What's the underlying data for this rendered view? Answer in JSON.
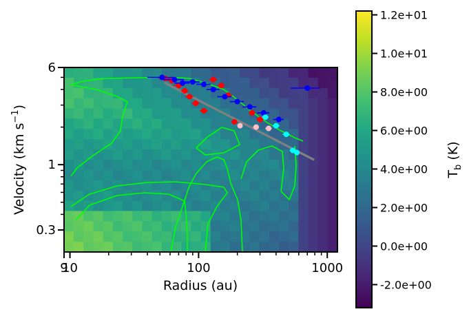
{
  "chart_data": {
    "type": "heatmap",
    "xlabel": "Radius (au)",
    "ylabel_main": "Velocity (km s",
    "ylabel_sup": "−1",
    "ylabel_close": ")",
    "x_scale": "log",
    "y_scale": "log",
    "xlim": [
      9,
      1200
    ],
    "ylim": [
      0.2,
      6.0
    ],
    "x_ticks": [
      {
        "value": 9,
        "label": "9"
      },
      {
        "value": 10,
        "label": "10"
      },
      {
        "value": 100,
        "label": "100"
      },
      {
        "value": 1000,
        "label": "1000"
      }
    ],
    "y_ticks": [
      {
        "value": 0.3,
        "label": "0.3"
      },
      {
        "value": 1,
        "label": "1"
      },
      {
        "value": 6,
        "label": "6"
      }
    ],
    "colorbar": {
      "label_main": "T",
      "label_sub": "b",
      "label_unit": " (K)",
      "range": [
        -3.2,
        12.2
      ],
      "ticks": [
        {
          "value": 12,
          "label": "1.2e+01"
        },
        {
          "value": 10,
          "label": "1.0e+01"
        },
        {
          "value": 8,
          "label": "8.0e+00"
        },
        {
          "value": 6,
          "label": "6.0e+00"
        },
        {
          "value": 4,
          "label": "4.0e+00"
        },
        {
          "value": 2,
          "label": "2.0e+00"
        },
        {
          "value": 0,
          "label": "0.0e+00"
        },
        {
          "value": -2,
          "label": "-2.0e+00"
        }
      ],
      "colormap": "viridis"
    },
    "contour_color": "#00ff00",
    "fit_line": {
      "color": "#808080",
      "points": [
        [
          55,
          4.5
        ],
        [
          780,
          1.1
        ]
      ]
    },
    "series": [
      {
        "color": "#ff0000",
        "points": [
          {
            "x": 55,
            "y": 4.9,
            "xerr": 6
          },
          {
            "x": 62,
            "y": 4.7,
            "xerr": 5
          },
          {
            "x": 70,
            "y": 4.3,
            "xerr": 6
          },
          {
            "x": 78,
            "y": 3.9,
            "xerr": 5
          },
          {
            "x": 85,
            "y": 3.5,
            "xerr": 6
          },
          {
            "x": 95,
            "y": 3.1,
            "xerr": 7
          },
          {
            "x": 110,
            "y": 2.7,
            "xerr": 8
          },
          {
            "x": 130,
            "y": 4.8,
            "xerr": 10
          },
          {
            "x": 150,
            "y": 4.3,
            "xerr": 10
          },
          {
            "x": 170,
            "y": 3.6,
            "xerr": 12
          },
          {
            "x": 190,
            "y": 2.2,
            "xerr": 10
          },
          {
            "x": 260,
            "y": 2.6,
            "xerr": 15
          },
          {
            "x": 300,
            "y": 2.3,
            "xerr": 20
          }
        ]
      },
      {
        "color": "#0000ff",
        "points": [
          {
            "x": 52,
            "y": 5.0,
            "xerr": 12
          },
          {
            "x": 65,
            "y": 4.8,
            "xerr": 12
          },
          {
            "x": 75,
            "y": 4.5,
            "xerr": 10
          },
          {
            "x": 90,
            "y": 4.6,
            "xerr": 12
          },
          {
            "x": 110,
            "y": 4.4,
            "xerr": 14
          },
          {
            "x": 130,
            "y": 4.0,
            "xerr": 15
          },
          {
            "x": 160,
            "y": 3.5,
            "xerr": 20
          },
          {
            "x": 200,
            "y": 3.2,
            "xerr": 25
          },
          {
            "x": 250,
            "y": 2.9,
            "xerr": 30
          },
          {
            "x": 320,
            "y": 2.6,
            "xerr": 35
          },
          {
            "x": 420,
            "y": 2.3,
            "xerr": 40
          },
          {
            "x": 700,
            "y": 4.1,
            "xerr": 180
          }
        ]
      },
      {
        "color": "#00ffff",
        "points": [
          {
            "x": 330,
            "y": 2.4,
            "xerr": 20
          },
          {
            "x": 400,
            "y": 2.05,
            "xerr": 25
          },
          {
            "x": 480,
            "y": 1.75,
            "xerr": 30
          },
          {
            "x": 540,
            "y": 1.3,
            "xerr": 30
          },
          {
            "x": 580,
            "y": 1.25,
            "xerr": 25
          }
        ]
      },
      {
        "color": "#ffc0cb",
        "points": [
          {
            "x": 210,
            "y": 2.05,
            "xerr": 10
          },
          {
            "x": 280,
            "y": 2.0,
            "xerr": 15
          },
          {
            "x": 350,
            "y": 1.95,
            "xerr": 20
          }
        ]
      }
    ]
  }
}
